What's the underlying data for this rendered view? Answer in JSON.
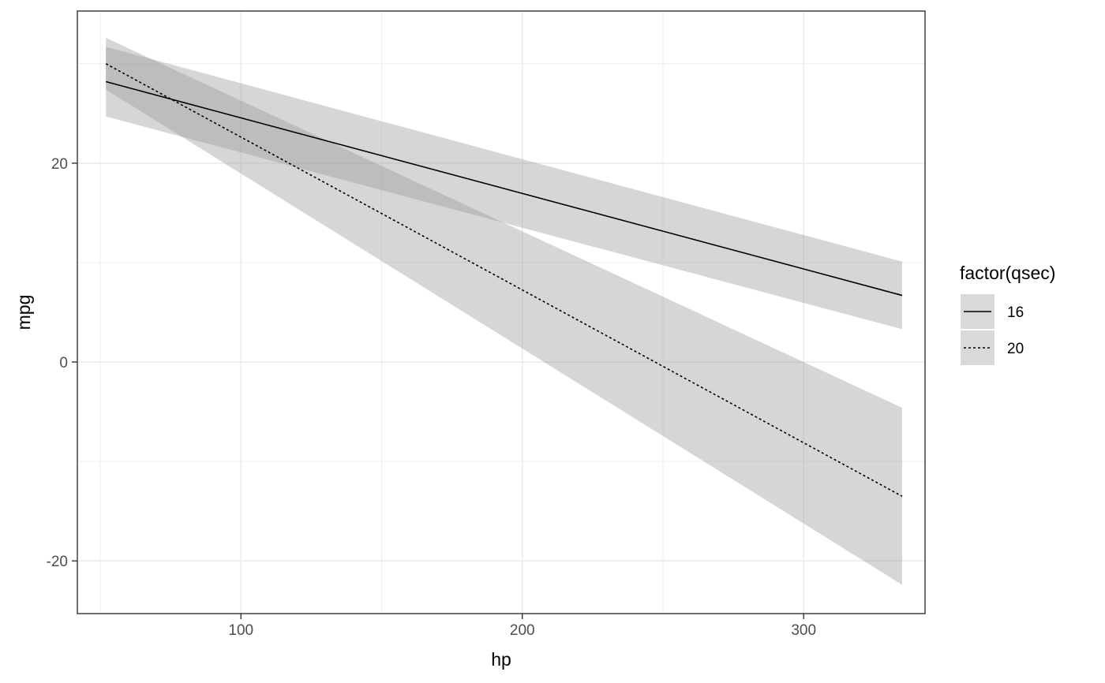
{
  "chart_data": {
    "type": "line",
    "xlabel": "hp",
    "ylabel": "mpg",
    "xlim": [
      41.85,
      343.15
    ],
    "ylim": [
      -25.3,
      35.3
    ],
    "x_ticks": [
      100,
      200,
      300
    ],
    "x_tick_labels": [
      "100",
      "200",
      "300"
    ],
    "x_minor_ticks": [
      50,
      150,
      250
    ],
    "y_ticks": [
      -20,
      0,
      20
    ],
    "y_tick_labels": [
      "-20",
      "0",
      "20"
    ],
    "y_minor_ticks": [
      -10,
      10,
      30
    ],
    "grid": true,
    "legend": {
      "title": "factor(qsec)",
      "placement": "right",
      "entries": [
        {
          "label": "16",
          "linetype": "solid"
        },
        {
          "label": "20",
          "linetype": "dotted"
        }
      ]
    },
    "series": [
      {
        "name": "16",
        "linetype": "solid",
        "x": [
          52,
          335
        ],
        "y": [
          28.2,
          6.7
        ],
        "ci_lower": [
          24.7,
          3.3
        ],
        "ci_upper": [
          31.7,
          10.1
        ]
      },
      {
        "name": "20",
        "linetype": "dotted",
        "x": [
          52,
          335
        ],
        "y": [
          30.0,
          -13.5
        ],
        "ci_lower": [
          27.4,
          -22.4
        ],
        "ci_upper": [
          32.6,
          -4.6
        ]
      }
    ],
    "colors": {
      "line": "#000000",
      "ribbon": "#999999",
      "grid": "#ebebeb",
      "panel_border": "#333333",
      "legend_key_bg": "#d9d9d9"
    }
  }
}
